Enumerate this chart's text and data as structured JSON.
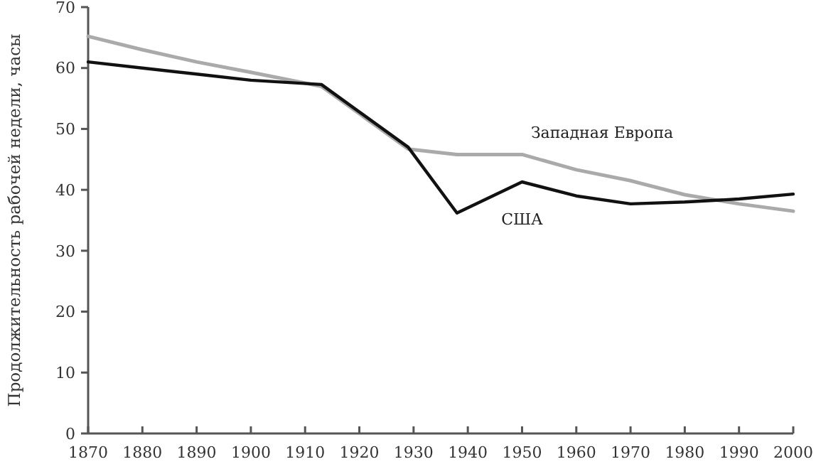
{
  "chart_data": {
    "type": "line",
    "ylabel": "Продолжительность рабочей недели, часы",
    "xlim": [
      1870,
      2000
    ],
    "xticks": [
      1870,
      1880,
      1890,
      1900,
      1910,
      1920,
      1930,
      1940,
      1950,
      1960,
      1970,
      1980,
      1990,
      2000
    ],
    "ylim": [
      0,
      70
    ],
    "yticks": [
      0,
      10,
      20,
      30,
      40,
      50,
      60,
      70
    ],
    "grid": false,
    "marker": "none",
    "line_style": "solid",
    "series": [
      {
        "name": "Западная Европа",
        "color": "#aaaaaa",
        "x": [
          1870,
          1880,
          1890,
          1900,
          1913,
          1929,
          1938,
          1950,
          1960,
          1970,
          1980,
          1990,
          2000
        ],
        "values": [
          65.2,
          63,
          61,
          59.3,
          57,
          46.7,
          45.8,
          45.8,
          43.3,
          41.5,
          39.2,
          37.7,
          36.5
        ]
      },
      {
        "name": "США",
        "color": "#111111",
        "x": [
          1870,
          1880,
          1890,
          1900,
          1913,
          1929,
          1938,
          1950,
          1960,
          1970,
          1980,
          1990,
          2000
        ],
        "values": [
          61,
          60,
          59,
          58,
          57.3,
          47,
          36.2,
          41.3,
          39,
          37.7,
          38,
          38.5,
          39.3
        ]
      }
    ]
  }
}
